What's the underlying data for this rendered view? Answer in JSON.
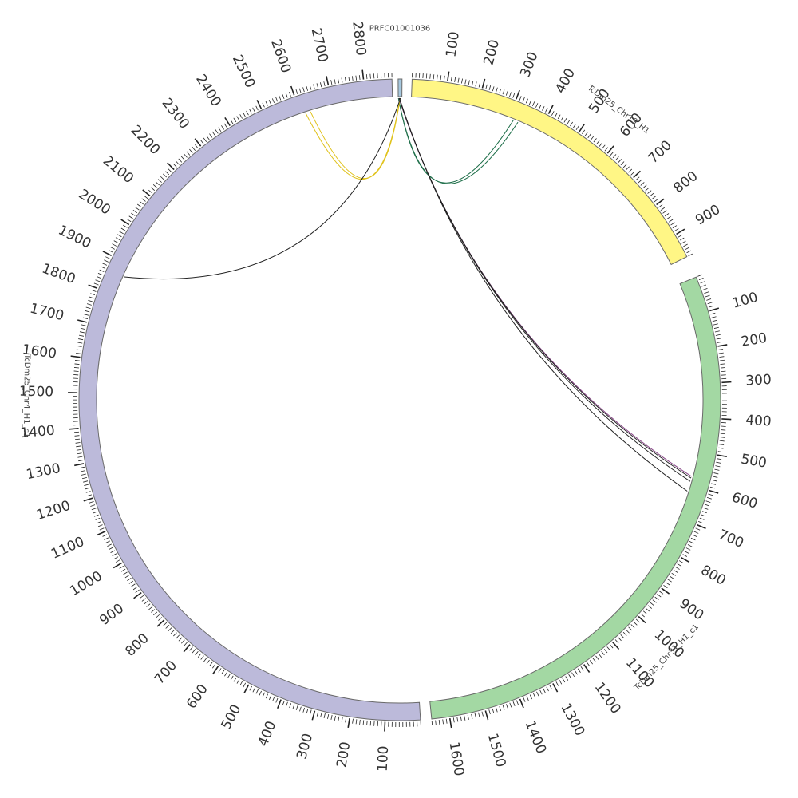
{
  "sequences": [
    {
      "id": "contig",
      "name": "PRFC01001036",
      "length": 10,
      "color": "#a6c8df"
    },
    {
      "id": "chr19",
      "name": "TcDm25_Chr19_H1",
      "length": 970,
      "color": "#fff685"
    },
    {
      "id": "chr31",
      "name": "TcDm25_Chr31_H1_c1",
      "length": 1650,
      "color": "#a3d8a3"
    },
    {
      "id": "chr4",
      "name": "TcDm25_Chr4_H1_c1",
      "length": 2880,
      "color": "#bcbada"
    }
  ],
  "links": [
    {
      "from_seq": "contig",
      "from_pos": 0.5,
      "to_seq": "chr19",
      "to_pos": 315,
      "color": "#1f6f4a"
    },
    {
      "from_seq": "contig",
      "from_pos": 0.7,
      "to_seq": "chr19",
      "to_pos": 330,
      "color": "#1f6f4a"
    },
    {
      "from_seq": "contig",
      "from_pos": 4.5,
      "to_seq": "chr4",
      "to_pos": 2615,
      "color": "#e0c21a"
    },
    {
      "from_seq": "contig",
      "from_pos": 5.0,
      "to_seq": "chr4",
      "to_pos": 2630,
      "color": "#e0c21a"
    },
    {
      "from_seq": "contig",
      "from_pos": 6.0,
      "to_seq": "chr4",
      "to_pos": 1860,
      "color": "#222222"
    },
    {
      "from_seq": "contig",
      "from_pos": 2.0,
      "to_seq": "chr31",
      "to_pos": 575,
      "color": "#8a4a8a"
    },
    {
      "from_seq": "contig",
      "from_pos": 2.5,
      "to_seq": "chr31",
      "to_pos": 580,
      "color": "#222222"
    },
    {
      "from_seq": "contig",
      "from_pos": 3.0,
      "to_seq": "chr31",
      "to_pos": 590,
      "color": "#222222"
    },
    {
      "from_seq": "contig",
      "from_pos": 3.5,
      "to_seq": "chr31",
      "to_pos": 620,
      "color": "#222222"
    }
  ]
}
